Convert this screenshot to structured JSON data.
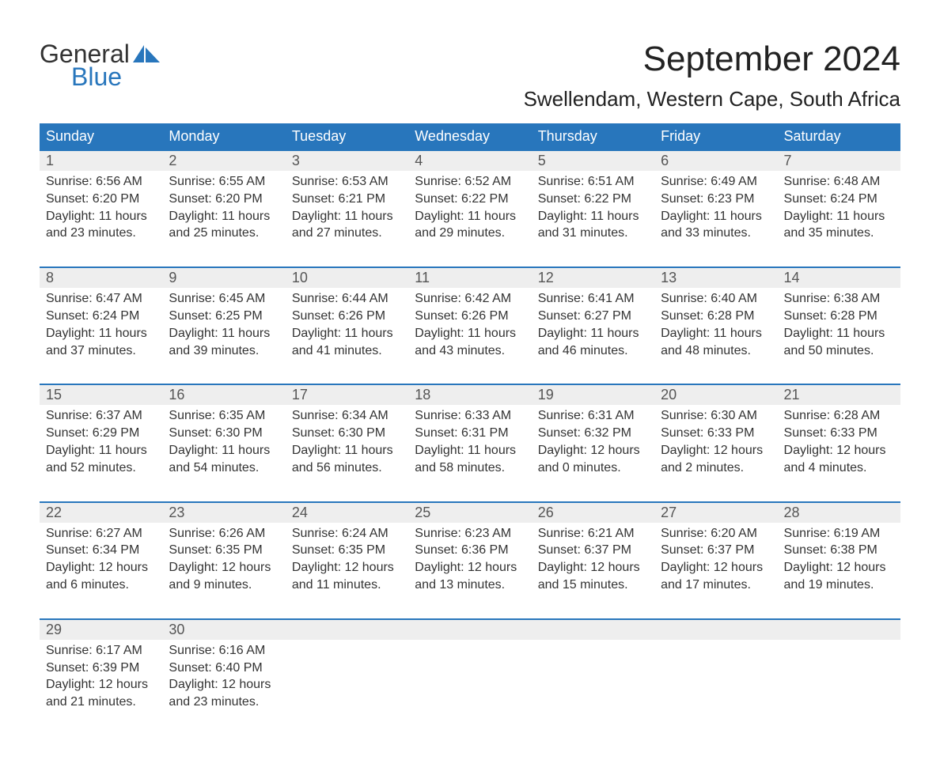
{
  "logo": {
    "top": "General",
    "bottom": "Blue",
    "flag_color": "#2876bc"
  },
  "title": "September 2024",
  "location": "Swellendam, Western Cape, South Africa",
  "colors": {
    "header_bg": "#2876bc",
    "header_text": "#ffffff",
    "day_number_bg": "#eeeeee",
    "day_number_text": "#555555",
    "body_text": "#333333",
    "border": "#2876bc",
    "logo_gray": "#333333",
    "logo_blue": "#2876bc",
    "background": "#ffffff"
  },
  "day_headers": [
    "Sunday",
    "Monday",
    "Tuesday",
    "Wednesday",
    "Thursday",
    "Friday",
    "Saturday"
  ],
  "weeks": [
    [
      {
        "num": "1",
        "sunrise": "Sunrise: 6:56 AM",
        "sunset": "Sunset: 6:20 PM",
        "daylight1": "Daylight: 11 hours",
        "daylight2": "and 23 minutes."
      },
      {
        "num": "2",
        "sunrise": "Sunrise: 6:55 AM",
        "sunset": "Sunset: 6:20 PM",
        "daylight1": "Daylight: 11 hours",
        "daylight2": "and 25 minutes."
      },
      {
        "num": "3",
        "sunrise": "Sunrise: 6:53 AM",
        "sunset": "Sunset: 6:21 PM",
        "daylight1": "Daylight: 11 hours",
        "daylight2": "and 27 minutes."
      },
      {
        "num": "4",
        "sunrise": "Sunrise: 6:52 AM",
        "sunset": "Sunset: 6:22 PM",
        "daylight1": "Daylight: 11 hours",
        "daylight2": "and 29 minutes."
      },
      {
        "num": "5",
        "sunrise": "Sunrise: 6:51 AM",
        "sunset": "Sunset: 6:22 PM",
        "daylight1": "Daylight: 11 hours",
        "daylight2": "and 31 minutes."
      },
      {
        "num": "6",
        "sunrise": "Sunrise: 6:49 AM",
        "sunset": "Sunset: 6:23 PM",
        "daylight1": "Daylight: 11 hours",
        "daylight2": "and 33 minutes."
      },
      {
        "num": "7",
        "sunrise": "Sunrise: 6:48 AM",
        "sunset": "Sunset: 6:24 PM",
        "daylight1": "Daylight: 11 hours",
        "daylight2": "and 35 minutes."
      }
    ],
    [
      {
        "num": "8",
        "sunrise": "Sunrise: 6:47 AM",
        "sunset": "Sunset: 6:24 PM",
        "daylight1": "Daylight: 11 hours",
        "daylight2": "and 37 minutes."
      },
      {
        "num": "9",
        "sunrise": "Sunrise: 6:45 AM",
        "sunset": "Sunset: 6:25 PM",
        "daylight1": "Daylight: 11 hours",
        "daylight2": "and 39 minutes."
      },
      {
        "num": "10",
        "sunrise": "Sunrise: 6:44 AM",
        "sunset": "Sunset: 6:26 PM",
        "daylight1": "Daylight: 11 hours",
        "daylight2": "and 41 minutes."
      },
      {
        "num": "11",
        "sunrise": "Sunrise: 6:42 AM",
        "sunset": "Sunset: 6:26 PM",
        "daylight1": "Daylight: 11 hours",
        "daylight2": "and 43 minutes."
      },
      {
        "num": "12",
        "sunrise": "Sunrise: 6:41 AM",
        "sunset": "Sunset: 6:27 PM",
        "daylight1": "Daylight: 11 hours",
        "daylight2": "and 46 minutes."
      },
      {
        "num": "13",
        "sunrise": "Sunrise: 6:40 AM",
        "sunset": "Sunset: 6:28 PM",
        "daylight1": "Daylight: 11 hours",
        "daylight2": "and 48 minutes."
      },
      {
        "num": "14",
        "sunrise": "Sunrise: 6:38 AM",
        "sunset": "Sunset: 6:28 PM",
        "daylight1": "Daylight: 11 hours",
        "daylight2": "and 50 minutes."
      }
    ],
    [
      {
        "num": "15",
        "sunrise": "Sunrise: 6:37 AM",
        "sunset": "Sunset: 6:29 PM",
        "daylight1": "Daylight: 11 hours",
        "daylight2": "and 52 minutes."
      },
      {
        "num": "16",
        "sunrise": "Sunrise: 6:35 AM",
        "sunset": "Sunset: 6:30 PM",
        "daylight1": "Daylight: 11 hours",
        "daylight2": "and 54 minutes."
      },
      {
        "num": "17",
        "sunrise": "Sunrise: 6:34 AM",
        "sunset": "Sunset: 6:30 PM",
        "daylight1": "Daylight: 11 hours",
        "daylight2": "and 56 minutes."
      },
      {
        "num": "18",
        "sunrise": "Sunrise: 6:33 AM",
        "sunset": "Sunset: 6:31 PM",
        "daylight1": "Daylight: 11 hours",
        "daylight2": "and 58 minutes."
      },
      {
        "num": "19",
        "sunrise": "Sunrise: 6:31 AM",
        "sunset": "Sunset: 6:32 PM",
        "daylight1": "Daylight: 12 hours",
        "daylight2": "and 0 minutes."
      },
      {
        "num": "20",
        "sunrise": "Sunrise: 6:30 AM",
        "sunset": "Sunset: 6:33 PM",
        "daylight1": "Daylight: 12 hours",
        "daylight2": "and 2 minutes."
      },
      {
        "num": "21",
        "sunrise": "Sunrise: 6:28 AM",
        "sunset": "Sunset: 6:33 PM",
        "daylight1": "Daylight: 12 hours",
        "daylight2": "and 4 minutes."
      }
    ],
    [
      {
        "num": "22",
        "sunrise": "Sunrise: 6:27 AM",
        "sunset": "Sunset: 6:34 PM",
        "daylight1": "Daylight: 12 hours",
        "daylight2": "and 6 minutes."
      },
      {
        "num": "23",
        "sunrise": "Sunrise: 6:26 AM",
        "sunset": "Sunset: 6:35 PM",
        "daylight1": "Daylight: 12 hours",
        "daylight2": "and 9 minutes."
      },
      {
        "num": "24",
        "sunrise": "Sunrise: 6:24 AM",
        "sunset": "Sunset: 6:35 PM",
        "daylight1": "Daylight: 12 hours",
        "daylight2": "and 11 minutes."
      },
      {
        "num": "25",
        "sunrise": "Sunrise: 6:23 AM",
        "sunset": "Sunset: 6:36 PM",
        "daylight1": "Daylight: 12 hours",
        "daylight2": "and 13 minutes."
      },
      {
        "num": "26",
        "sunrise": "Sunrise: 6:21 AM",
        "sunset": "Sunset: 6:37 PM",
        "daylight1": "Daylight: 12 hours",
        "daylight2": "and 15 minutes."
      },
      {
        "num": "27",
        "sunrise": "Sunrise: 6:20 AM",
        "sunset": "Sunset: 6:37 PM",
        "daylight1": "Daylight: 12 hours",
        "daylight2": "and 17 minutes."
      },
      {
        "num": "28",
        "sunrise": "Sunrise: 6:19 AM",
        "sunset": "Sunset: 6:38 PM",
        "daylight1": "Daylight: 12 hours",
        "daylight2": "and 19 minutes."
      }
    ],
    [
      {
        "num": "29",
        "sunrise": "Sunrise: 6:17 AM",
        "sunset": "Sunset: 6:39 PM",
        "daylight1": "Daylight: 12 hours",
        "daylight2": "and 21 minutes."
      },
      {
        "num": "30",
        "sunrise": "Sunrise: 6:16 AM",
        "sunset": "Sunset: 6:40 PM",
        "daylight1": "Daylight: 12 hours",
        "daylight2": "and 23 minutes."
      },
      null,
      null,
      null,
      null,
      null
    ]
  ]
}
